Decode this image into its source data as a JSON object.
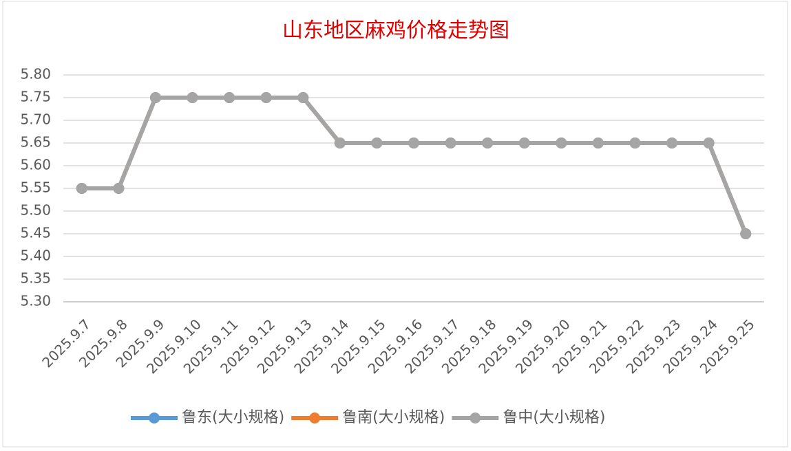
{
  "chart_data": {
    "type": "line",
    "title": "山东地区麻鸡价格走势图",
    "categories": [
      "2025.9.7",
      "2025.9.8",
      "2025.9.9",
      "2025.9.10",
      "2025.9.11",
      "2025.9.12",
      "2025.9.13",
      "2025.9.14",
      "2025.9.15",
      "2025.9.16",
      "2025.9.17",
      "2025.9.18",
      "2025.9.19",
      "2025.9.20",
      "2025.9.21",
      "2025.9.22",
      "2025.9.23",
      "2025.9.24",
      "2025.9.25"
    ],
    "series": [
      {
        "name": "鲁东(大小规格)",
        "color": "#5b9bd5",
        "values": [
          5.55,
          5.55,
          5.75,
          5.75,
          5.75,
          5.75,
          5.75,
          5.65,
          5.65,
          5.65,
          5.65,
          5.65,
          5.65,
          5.65,
          5.65,
          5.65,
          5.65,
          5.65,
          5.45
        ]
      },
      {
        "name": "鲁南(大小规格)",
        "color": "#ed7d31",
        "values": [
          5.55,
          5.55,
          5.75,
          5.75,
          5.75,
          5.75,
          5.75,
          5.65,
          5.65,
          5.65,
          5.65,
          5.65,
          5.65,
          5.65,
          5.65,
          5.65,
          5.65,
          5.65,
          5.45
        ]
      },
      {
        "name": "鲁中(大小规格)",
        "color": "#a5a5a5",
        "values": [
          5.55,
          5.55,
          5.75,
          5.75,
          5.75,
          5.75,
          5.75,
          5.65,
          5.65,
          5.65,
          5.65,
          5.65,
          5.65,
          5.65,
          5.65,
          5.65,
          5.65,
          5.65,
          5.45
        ]
      }
    ],
    "ylim": [
      5.3,
      5.8
    ],
    "yticks": [
      {
        "value": 5.3,
        "label": "5.30"
      },
      {
        "value": 5.35,
        "label": "5.35"
      },
      {
        "value": 5.4,
        "label": "5.40"
      },
      {
        "value": 5.45,
        "label": "5.45"
      },
      {
        "value": 5.5,
        "label": "5.50"
      },
      {
        "value": 5.55,
        "label": "5.55"
      },
      {
        "value": 5.6,
        "label": "5.60"
      },
      {
        "value": 5.65,
        "label": "5.65"
      },
      {
        "value": 5.7,
        "label": "5.70"
      },
      {
        "value": 5.75,
        "label": "5.75"
      },
      {
        "value": 5.8,
        "label": "5.80"
      }
    ],
    "grid": true,
    "legend": "bottom"
  }
}
